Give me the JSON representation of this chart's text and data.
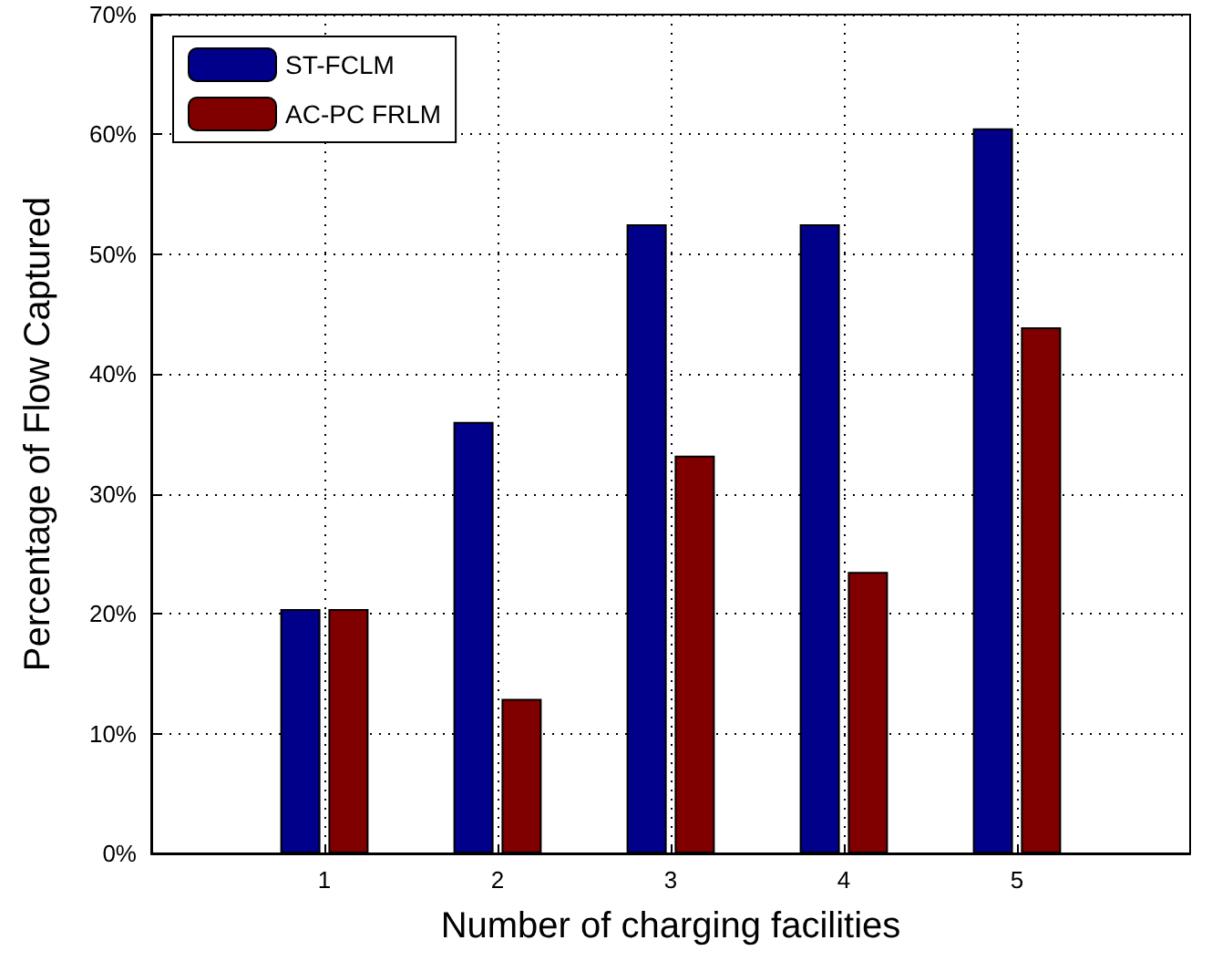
{
  "chart_data": {
    "type": "bar",
    "xlabel": "Number of charging facilities",
    "ylabel": "Percentage of Flow Captured",
    "x": [
      1,
      2,
      3,
      4,
      5
    ],
    "xlim": [
      0,
      6
    ],
    "xticks": [
      1,
      2,
      3,
      4,
      5
    ],
    "ylim": [
      0,
      70
    ],
    "yticks": [
      {
        "value": 0,
        "label": "0%"
      },
      {
        "value": 10,
        "label": "10%"
      },
      {
        "value": 20,
        "label": "20%"
      },
      {
        "value": 30,
        "label": "30%"
      },
      {
        "value": 40,
        "label": "40%"
      },
      {
        "value": 50,
        "label": "50%"
      },
      {
        "value": 60,
        "label": "60%"
      },
      {
        "value": 70,
        "label": "70%"
      }
    ],
    "series": [
      {
        "name": "ST-FCLM",
        "color": "#00008b",
        "values": [
          20.4,
          36.0,
          52.5,
          52.5,
          60.5
        ]
      },
      {
        "name": "AC-PC FRLM",
        "color": "#800000",
        "values": [
          20.4,
          12.9,
          33.2,
          23.5,
          43.9
        ]
      }
    ],
    "grid": true,
    "legend": "top left"
  }
}
